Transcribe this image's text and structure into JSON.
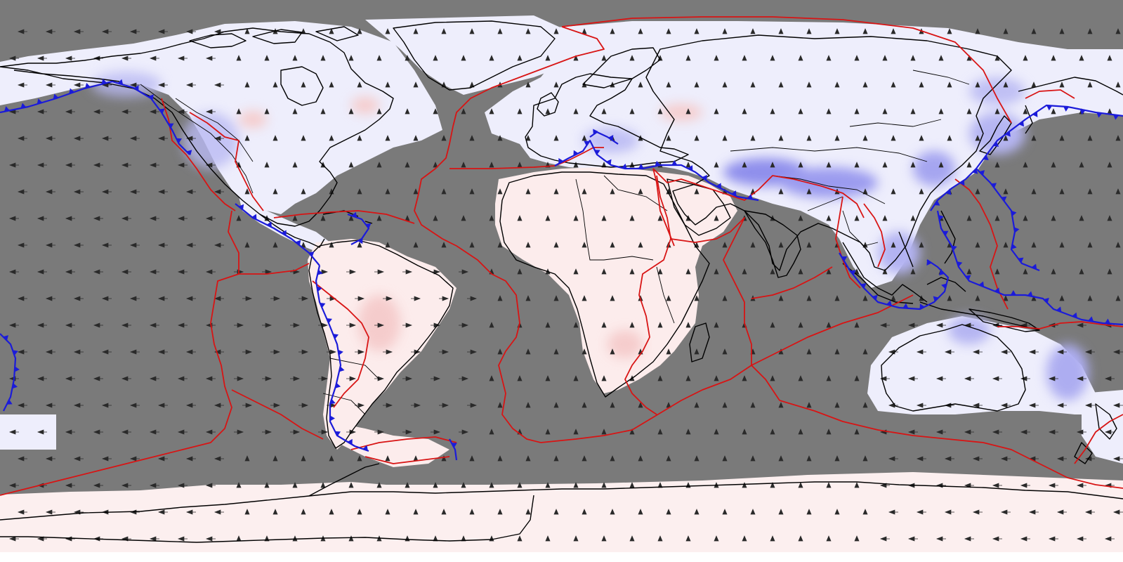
{
  "map": {
    "projection": "equirectangular",
    "extent": {
      "lon": [
        -180,
        180
      ],
      "lat": [
        -90,
        90
      ]
    },
    "layers": [
      "ocean-masked-gray",
      "continental-strain-field",
      "velocity-arrows",
      "coastlines",
      "block-boundaries",
      "plate-boundaries-ridges",
      "subduction-zones"
    ],
    "colors": {
      "ocean_mask": "#7a7a7a",
      "positive_anomaly": "#f8d6d6",
      "negative_anomaly": "#c8c8f6",
      "neutral": "#eeeefc",
      "ridge": "#d81414",
      "subduction": "#1b1bd9",
      "coastline": "#000000",
      "arrow": "#2a2a2a"
    }
  }
}
